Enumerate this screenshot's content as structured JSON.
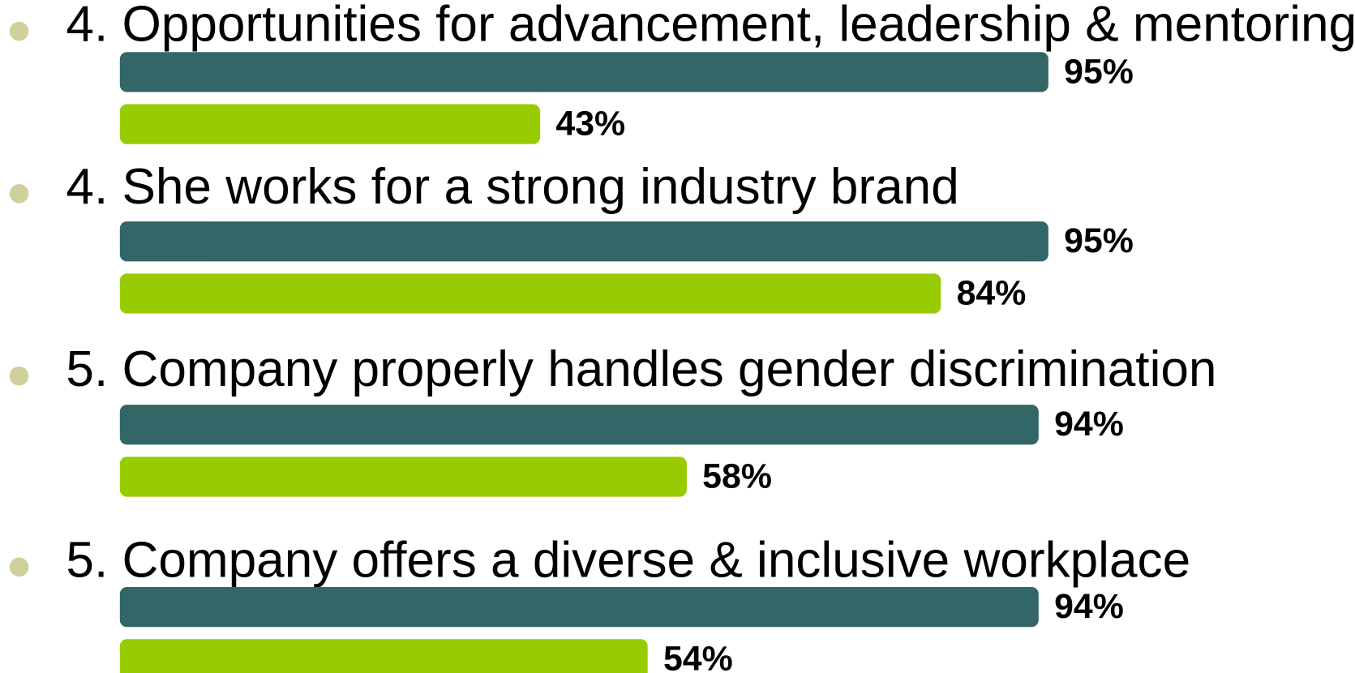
{
  "chart_data": {
    "type": "bar",
    "categories": [
      "4. Opportunities for advancement, leadership & mentoring",
      "4. She works for a strong industry brand",
      "5. Company properly handles gender discrimination",
      "5. Company offers a diverse & inclusive workplace"
    ],
    "series": [
      {
        "color": "#336666",
        "values": [
          95,
          95,
          94,
          94
        ],
        "value_labels": [
          "95%",
          "95%",
          "94%",
          "94%"
        ]
      },
      {
        "color": "#99cc00",
        "values": [
          43,
          84,
          58,
          54
        ],
        "value_labels": [
          "43%",
          "84%",
          "58%",
          "54%"
        ]
      }
    ]
  }
}
